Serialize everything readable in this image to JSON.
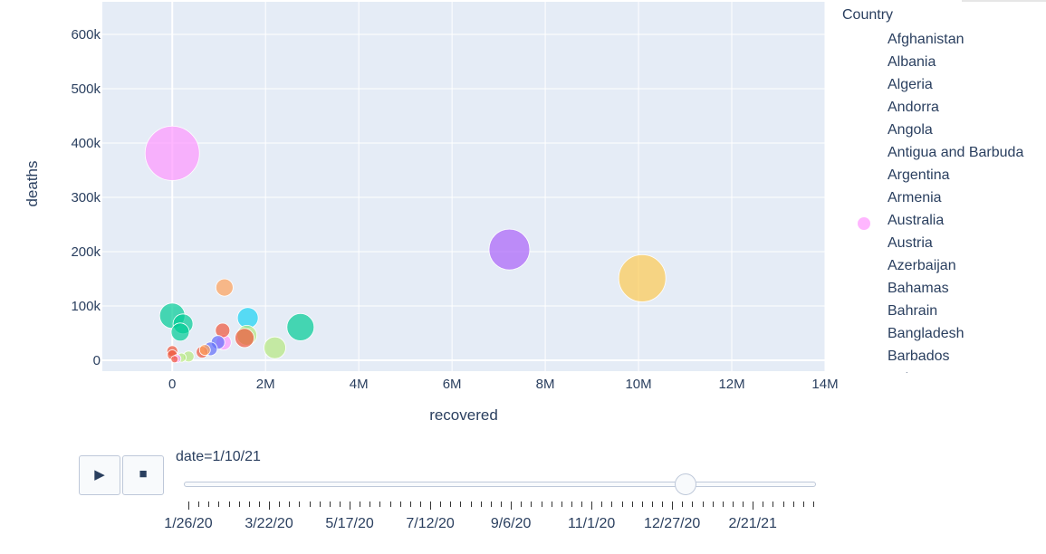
{
  "chart_data": {
    "type": "scatter",
    "subtype": "bubble",
    "xlabel": "recovered",
    "ylabel": "deaths",
    "xlim": [
      -1500000,
      14000000
    ],
    "ylim": [
      -20000,
      660000
    ],
    "x_ticks": [
      0,
      2000000,
      4000000,
      6000000,
      8000000,
      10000000,
      12000000,
      14000000
    ],
    "x_tick_labels": [
      "0",
      "2M",
      "4M",
      "6M",
      "8M",
      "10M",
      "12M",
      "14M"
    ],
    "y_ticks": [
      0,
      100000,
      200000,
      300000,
      400000,
      500000,
      600000
    ],
    "y_tick_labels": [
      "0",
      "100k",
      "200k",
      "300k",
      "400k",
      "500k",
      "600k"
    ],
    "grid": true,
    "legend_title": "Country",
    "legend_position": "right",
    "plot_background": "#e5ecf6",
    "points": [
      {
        "x": 0,
        "y": 381000,
        "size": 60,
        "color": "#FF97FF"
      },
      {
        "x": 7230000,
        "y": 204000,
        "size": 45,
        "color": "#AB63FA"
      },
      {
        "x": 10080000,
        "y": 151000,
        "size": 52,
        "color": "#FECB52"
      },
      {
        "x": 1120000,
        "y": 134000,
        "size": 19,
        "color": "#FFA15A"
      },
      {
        "x": 0,
        "y": 82000,
        "size": 28,
        "color": "#00CC96"
      },
      {
        "x": 230000,
        "y": 67000,
        "size": 22,
        "color": "#00CC96"
      },
      {
        "x": 170000,
        "y": 52000,
        "size": 20,
        "color": "#00CC96"
      },
      {
        "x": 2750000,
        "y": 61000,
        "size": 30,
        "color": "#00CC96"
      },
      {
        "x": 1620000,
        "y": 78000,
        "size": 23,
        "color": "#19D3F3"
      },
      {
        "x": 1080000,
        "y": 55000,
        "size": 16,
        "color": "#EF553B"
      },
      {
        "x": 1600000,
        "y": 46000,
        "size": 22,
        "color": "#B6E880"
      },
      {
        "x": 1550000,
        "y": 41000,
        "size": 21,
        "color": "#EF553B"
      },
      {
        "x": 1100000,
        "y": 33000,
        "size": 17,
        "color": "#FF97FF"
      },
      {
        "x": 980000,
        "y": 33000,
        "size": 15,
        "color": "#636EFA"
      },
      {
        "x": 2200000,
        "y": 23000,
        "size": 24,
        "color": "#B6E880"
      },
      {
        "x": 820000,
        "y": 21000,
        "size": 15,
        "color": "#636EFA"
      },
      {
        "x": 640000,
        "y": 15000,
        "size": 13,
        "color": "#EF553B"
      },
      {
        "x": 700000,
        "y": 19000,
        "size": 12,
        "color": "#FFA15A"
      },
      {
        "x": 0,
        "y": 17000,
        "size": 12,
        "color": "#EF553B"
      },
      {
        "x": 0,
        "y": 10000,
        "size": 11,
        "color": "#EF553B"
      },
      {
        "x": 350000,
        "y": 7000,
        "size": 12,
        "color": "#B6E880"
      },
      {
        "x": 200000,
        "y": 5000,
        "size": 10,
        "color": "#B6E880"
      },
      {
        "x": 50000,
        "y": 2000,
        "size": 8,
        "color": "#EF553B"
      },
      {
        "x": 100000,
        "y": 3000,
        "size": 9,
        "color": "#FF97FF"
      }
    ]
  },
  "legend": {
    "title": "Country",
    "items": [
      {
        "label": "Afghanistan",
        "color": ""
      },
      {
        "label": "Albania",
        "color": ""
      },
      {
        "label": "Algeria",
        "color": ""
      },
      {
        "label": "Andorra",
        "color": ""
      },
      {
        "label": "Angola",
        "color": ""
      },
      {
        "label": "Antigua and Barbuda",
        "color": ""
      },
      {
        "label": "Argentina",
        "color": ""
      },
      {
        "label": "Armenia",
        "color": ""
      },
      {
        "label": "Australia",
        "color": "#FF97FF"
      },
      {
        "label": "Austria",
        "color": ""
      },
      {
        "label": "Azerbaijan",
        "color": ""
      },
      {
        "label": "Bahamas",
        "color": ""
      },
      {
        "label": "Bahrain",
        "color": ""
      },
      {
        "label": "Bangladesh",
        "color": ""
      },
      {
        "label": "Barbados",
        "color": ""
      },
      {
        "label": "Belarus",
        "color": ""
      }
    ]
  },
  "controls": {
    "play_icon": "play-icon",
    "stop_icon": "stop-icon",
    "play_glyph": "▶",
    "stop_glyph": "■"
  },
  "slider": {
    "current_label": "date=1/10/21",
    "position_fraction": 0.802,
    "tick_labels": [
      "1/26/20",
      "3/22/20",
      "5/17/20",
      "7/12/20",
      "9/6/20",
      "11/1/20",
      "12/27/20",
      "2/21/21"
    ],
    "minor_tick_count": 63
  }
}
